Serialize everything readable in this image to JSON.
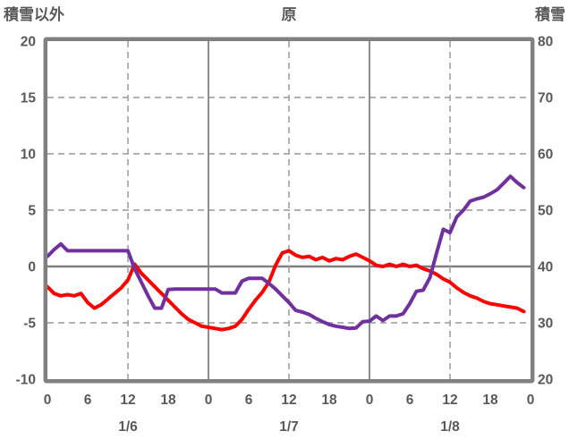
{
  "chart": {
    "title": "原",
    "left_axis_title": "積雪以外",
    "right_axis_title": "積雪"
  },
  "chart_data": {
    "type": "line",
    "title": "原",
    "x_unit": "hour",
    "hours_total": 72,
    "day_labels": [
      "1/6",
      "1/7",
      "1/8"
    ],
    "hour_tick_step": 6,
    "hour_tick_labels": [
      "0",
      "6",
      "12",
      "18",
      "0",
      "6",
      "12",
      "18",
      "0",
      "6",
      "12",
      "18",
      "0"
    ],
    "left_axis": {
      "title": "積雪以外",
      "range": [
        -10,
        20
      ],
      "ticks": [
        20,
        15,
        10,
        5,
        0,
        -5,
        -10
      ]
    },
    "right_axis": {
      "title": "積雪",
      "range": [
        20,
        80
      ],
      "ticks": [
        80,
        70,
        60,
        50,
        40,
        30,
        20
      ]
    },
    "grid": {
      "dashed_horizontal_left_values": [
        15,
        10,
        5,
        -5
      ],
      "solid_horizontal_left_values": [
        0
      ],
      "dashed_vertical_hours": [
        12,
        36,
        60
      ],
      "solid_vertical_hours": [
        24,
        48
      ],
      "frame_color": "#808080",
      "solid_line_color": "#808080",
      "dashed_line_color": "#a6a6a6",
      "text_color": "#595959"
    },
    "series": [
      {
        "name": "積雪以外",
        "axis": "left",
        "color": "#ff0000",
        "values": [
          -1.8,
          -2.4,
          -2.6,
          -2.5,
          -2.6,
          -2.4,
          -3.2,
          -3.7,
          -3.4,
          -2.9,
          -2.4,
          -1.9,
          -1.2,
          0.2,
          -0.6,
          -1.2,
          -1.8,
          -2.4,
          -3.0,
          -3.6,
          -4.2,
          -4.7,
          -5.0,
          -5.3,
          -5.4,
          -5.5,
          -5.6,
          -5.5,
          -5.3,
          -4.7,
          -3.8,
          -3.0,
          -2.3,
          -1.4,
          0.1,
          1.2,
          1.4,
          1.0,
          0.8,
          0.9,
          0.6,
          0.8,
          0.5,
          0.7,
          0.6,
          0.9,
          1.1,
          0.8,
          0.5,
          0.1,
          0.0,
          0.2,
          0.0,
          0.2,
          0.0,
          0.1,
          -0.2,
          -0.4,
          -0.7,
          -1.1,
          -1.4,
          -1.9,
          -2.3,
          -2.6,
          -2.8,
          -3.1,
          -3.3,
          -3.4,
          -3.5,
          -3.6,
          -3.7,
          -4.0
        ]
      },
      {
        "name": "積雪",
        "axis": "right",
        "color": "#7030a0",
        "values": [
          41.8,
          43.0,
          44.0,
          42.8,
          42.8,
          42.8,
          42.8,
          42.8,
          42.8,
          42.8,
          42.8,
          42.8,
          42.8,
          39.6,
          37.2,
          34.8,
          32.6,
          32.6,
          35.9,
          36.0,
          36.0,
          36.0,
          36.0,
          36.0,
          36.0,
          36.0,
          35.3,
          35.3,
          35.3,
          37.4,
          37.9,
          37.9,
          37.9,
          37.0,
          36.0,
          34.8,
          33.6,
          32.2,
          31.9,
          31.5,
          30.8,
          30.2,
          29.7,
          29.4,
          29.2,
          29.0,
          29.1,
          30.2,
          30.3,
          31.2,
          30.4,
          31.2,
          31.2,
          31.6,
          33.4,
          35.6,
          35.8,
          38.0,
          42.4,
          46.6,
          46.0,
          48.8,
          50.0,
          51.6,
          52.0,
          52.3,
          52.9,
          53.6,
          54.8,
          56.0,
          54.9,
          54.0
        ]
      }
    ]
  }
}
